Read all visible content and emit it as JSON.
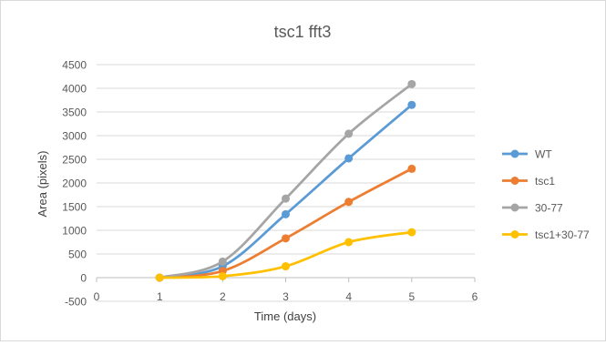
{
  "chart_data": {
    "type": "line",
    "title": "tsc1 fft3",
    "xlabel": "Time (days)",
    "ylabel": "Area (pixels)",
    "xlim": [
      0,
      6
    ],
    "ylim": [
      -500,
      4500
    ],
    "x_ticks": [
      "0",
      "1",
      "2",
      "3",
      "4",
      "5",
      "6"
    ],
    "y_ticks": [
      "4500",
      "4000",
      "3500",
      "3000",
      "2500",
      "2000",
      "1500",
      "1000",
      "500",
      "0",
      "-500"
    ],
    "grid": "horizontal",
    "legend_position": "right",
    "smooth": true,
    "x": [
      1,
      2,
      3,
      4,
      5
    ],
    "series": [
      {
        "name": "WT",
        "color": "#5b9bd5",
        "values": [
          0,
          240,
          1340,
          2520,
          3650
        ]
      },
      {
        "name": "tsc1",
        "color": "#ed7d31",
        "values": [
          0,
          140,
          830,
          1600,
          2300
        ]
      },
      {
        "name": "30-77",
        "color": "#a5a5a5",
        "values": [
          0,
          340,
          1670,
          3040,
          4090
        ]
      },
      {
        "name": "tsc1+30-77",
        "color": "#ffc000",
        "values": [
          0,
          30,
          240,
          750,
          960
        ]
      }
    ]
  }
}
